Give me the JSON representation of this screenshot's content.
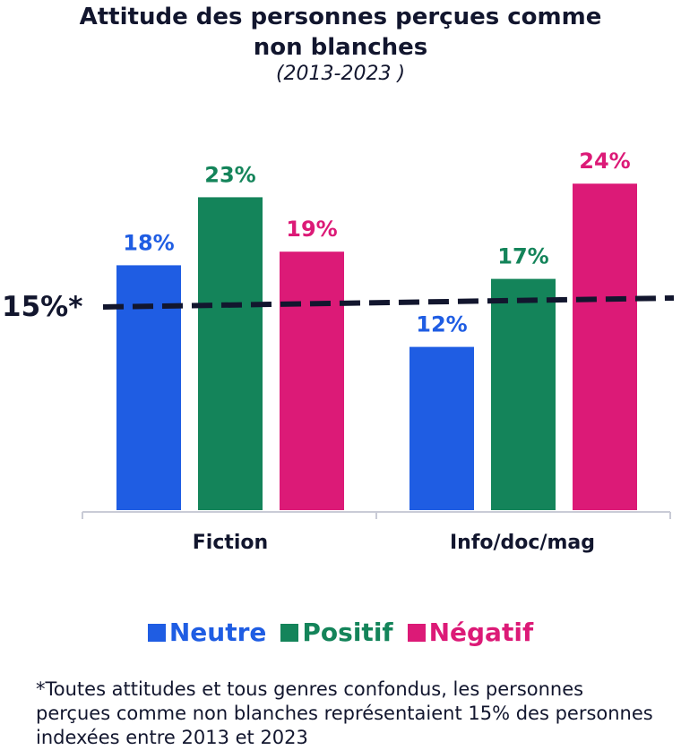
{
  "title_line1": "Attitude des personnes perçues comme",
  "title_line2": "non blanches",
  "subtitle": "(2013-2023 )",
  "chart_data": {
    "type": "bar",
    "categories": [
      "Fiction",
      "Info/doc/mag"
    ],
    "series": [
      {
        "name": "Neutre",
        "values": [
          18,
          12
        ],
        "labels": [
          "18%",
          "12%"
        ],
        "color": "#1f5de3"
      },
      {
        "name": "Positif",
        "values": [
          23,
          17
        ],
        "labels": [
          "23%",
          "17%"
        ],
        "color": "#14845a"
      },
      {
        "name": "Négatif",
        "values": [
          19,
          24
        ],
        "labels": [
          "19%",
          "24%"
        ],
        "color": "#dc1a77"
      }
    ],
    "reference_line": {
      "value": 15,
      "label": "15%*",
      "color": "#12162e",
      "style": "dashed"
    },
    "ylim": [
      0,
      25
    ],
    "grid": false,
    "legend_position": "bottom"
  },
  "footnote": "*Toutes attitudes et tous genres confondus, les personnes perçues comme non blanches représentaient 15% des personnes indexées entre 2013 et 2023"
}
